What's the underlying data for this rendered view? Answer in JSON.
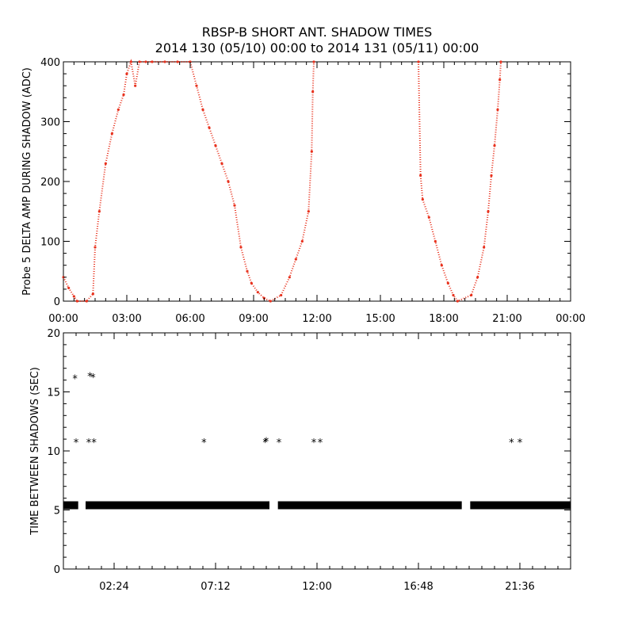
{
  "chart_data": [
    {
      "type": "scatter",
      "title": "RBSP-B SHORT ANT. SHADOW TIMES",
      "subtitle": "2014 130 (05/10) 00:00 to 2014 131 (05/11) 00:00",
      "ylabel": "Probe 5 DELTA AMP DURING SHADOW (ADC)",
      "xlabel": "",
      "xlim": [
        0,
        24
      ],
      "ylim": [
        0,
        400
      ],
      "x_unit": "hours",
      "x_ticks": [
        0,
        3,
        6,
        9,
        12,
        15,
        18,
        21,
        24
      ],
      "x_tick_labels": [
        "00:00",
        "03:00",
        "06:00",
        "09:00",
        "12:00",
        "15:00",
        "18:00",
        "21:00",
        "00:00"
      ],
      "y_ticks": [
        0,
        100,
        200,
        300,
        400
      ],
      "y_tick_labels": [
        "0",
        "100",
        "200",
        "300",
        "400"
      ],
      "grid": false,
      "color": "#e8321e",
      "series": [
        {
          "x": [
            0.0,
            0.25,
            0.5,
            0.65,
            1.1,
            1.4,
            1.5,
            1.7,
            2.0,
            2.3,
            2.6,
            2.85,
            3.0,
            3.2,
            3.4,
            3.6,
            3.9,
            4.2,
            4.8,
            5.4,
            6.0,
            6.3,
            6.6,
            6.9,
            7.2,
            7.5,
            7.8,
            8.1,
            8.4,
            8.7,
            8.9,
            9.2,
            9.5,
            9.8,
            10.3,
            10.7,
            11.0,
            11.3,
            11.6,
            11.75,
            11.8,
            11.85,
            16.8,
            16.9,
            17.0,
            17.3,
            17.6,
            17.9,
            18.2,
            18.45,
            18.65,
            19.3,
            19.6,
            19.9,
            20.1,
            20.25,
            20.4,
            20.55,
            20.65,
            20.7
          ],
          "y": [
            40,
            22,
            8,
            0,
            0,
            12,
            90,
            150,
            230,
            280,
            320,
            345,
            380,
            400,
            360,
            400,
            410,
            400,
            400,
            410,
            400,
            360,
            320,
            290,
            260,
            230,
            200,
            160,
            90,
            50,
            30,
            15,
            5,
            0,
            10,
            40,
            70,
            100,
            150,
            250,
            350,
            400,
            400,
            210,
            170,
            140,
            100,
            60,
            30,
            10,
            0,
            10,
            40,
            90,
            150,
            210,
            260,
            320,
            370,
            400
          ]
        }
      ]
    },
    {
      "type": "scatter",
      "title": "",
      "ylabel": "TIME BETWEEN SHADOWS (SEC)",
      "xlabel": "",
      "xlim": [
        0,
        24
      ],
      "ylim": [
        0,
        20
      ],
      "x_unit": "hours",
      "x_ticks": [
        2.4,
        7.2,
        12.0,
        16.8,
        21.6
      ],
      "x_tick_labels": [
        "02:24",
        "07:12",
        "12:00",
        "16:48",
        "21:36"
      ],
      "y_ticks": [
        0,
        5,
        10,
        15,
        20
      ],
      "y_tick_labels": [
        "0",
        "5",
        "10",
        "15",
        "20"
      ],
      "grid": false,
      "marker": "*",
      "color": "#000000",
      "series": [
        {
          "name": "",
          "x": [
            0.55,
            0.6,
            1.2,
            1.25,
            1.4,
            1.45,
            6.65,
            9.55,
            9.6,
            10.2,
            11.85,
            12.15,
            21.2,
            21.6
          ],
          "y": [
            16.2,
            10.8,
            10.8,
            16.4,
            16.3,
            10.8,
            10.8,
            10.8,
            10.9,
            10.8,
            10.8,
            10.8,
            10.8,
            10.8
          ]
        }
      ],
      "band": {
        "y": 5.4,
        "segments": [
          [
            0.0,
            0.7
          ],
          [
            1.05,
            9.75
          ],
          [
            10.15,
            18.85
          ],
          [
            19.25,
            24.0
          ]
        ]
      }
    }
  ]
}
